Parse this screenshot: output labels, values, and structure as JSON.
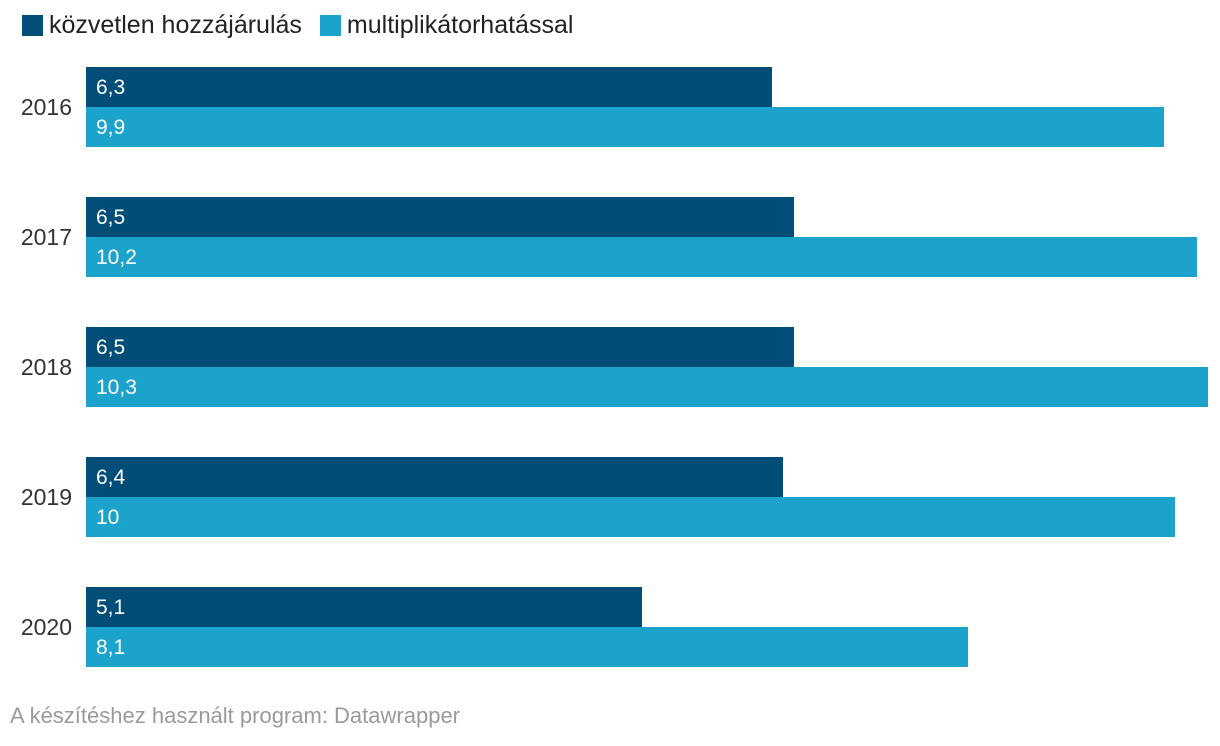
{
  "colors": {
    "series_dark": "#004e78",
    "series_light": "#1ba3cc",
    "category_text": "#333333",
    "legend_text": "#222222",
    "value_text": "#ffffff",
    "footer_text": "#9a9a9a",
    "background": "#ffffff"
  },
  "legend": {
    "items": [
      {
        "label": "közvetlen hozzájárulás",
        "color": "#004e78"
      },
      {
        "label": "multiplikátorhatással",
        "color": "#1ba3cc"
      }
    ]
  },
  "footer": {
    "text": "A készítéshez használt program: Datawrapper"
  },
  "chart_data": {
    "type": "bar",
    "orientation": "horizontal",
    "grid": false,
    "legend_position": "top-left",
    "categories": [
      "2016",
      "2017",
      "2018",
      "2019",
      "2020"
    ],
    "series": [
      {
        "name": "közvetlen hozzájárulás",
        "color": "#004e78",
        "values": [
          6.3,
          6.5,
          6.5,
          6.4,
          5.1
        ],
        "labels": [
          "6,3",
          "6,5",
          "6,5",
          "6,4",
          "5,1"
        ]
      },
      {
        "name": "multiplikátorhatással",
        "color": "#1ba3cc",
        "values": [
          9.9,
          10.2,
          10.3,
          10,
          8.1
        ],
        "labels": [
          "9,9",
          "10,2",
          "10,3",
          "10",
          "8,1"
        ]
      }
    ],
    "xlim": [
      0,
      10.3
    ],
    "value_labels_inside": true
  }
}
